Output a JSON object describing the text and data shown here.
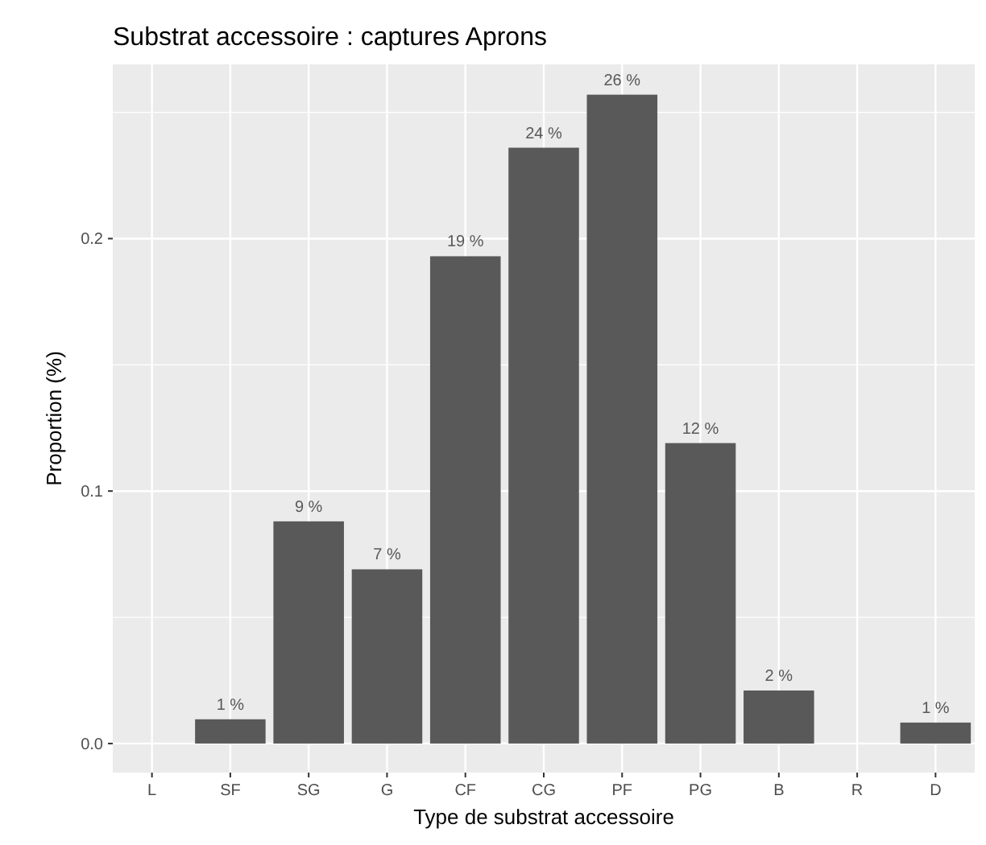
{
  "chart_data": {
    "type": "bar",
    "title": "Substrat accessoire : captures Aprons",
    "xlabel": "Type de substrat accessoire",
    "ylabel": "Proportion (%)",
    "categories": [
      "L",
      "SF",
      "SG",
      "G",
      "CF",
      "CG",
      "PF",
      "PG",
      "B",
      "R",
      "D"
    ],
    "values": [
      0,
      0.0096,
      0.088,
      0.069,
      0.193,
      0.236,
      0.257,
      0.119,
      0.021,
      0,
      0.0083
    ],
    "value_labels": [
      null,
      "1 %",
      "9 %",
      "7 %",
      "19 %",
      "24 %",
      "26 %",
      "12 %",
      "2 %",
      null,
      "1 %"
    ],
    "color": "#595959",
    "ylim": [
      -0.0115,
      0.269
    ],
    "yticks": [
      {
        "value": 0,
        "label": "0.0"
      },
      {
        "value": 0.1,
        "label": "0.1"
      },
      {
        "value": 0.2,
        "label": "0.2"
      }
    ],
    "grid": true
  }
}
